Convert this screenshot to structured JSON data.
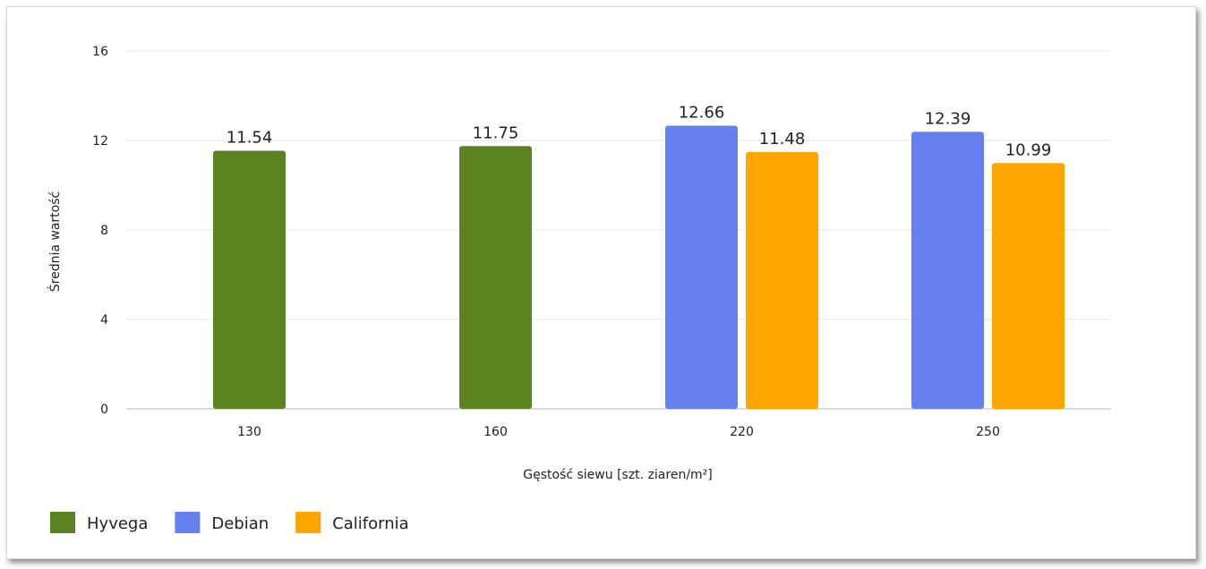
{
  "chart_data": {
    "type": "bar",
    "categories": [
      "130",
      "160",
      "220",
      "250"
    ],
    "series": [
      {
        "name": "Hyvega",
        "color": "#5b8321",
        "values": [
          11.54,
          11.75,
          null,
          null
        ]
      },
      {
        "name": "Debian",
        "color": "#6680f0",
        "values": [
          null,
          null,
          12.66,
          12.39
        ]
      },
      {
        "name": "California",
        "color": "#ffa500",
        "values": [
          null,
          null,
          11.48,
          10.99
        ]
      }
    ],
    "xlabel": "Gęstość siewu [szt. ziaren/m²]",
    "ylabel": "Średnia wartość",
    "ylim": [
      0,
      16
    ],
    "yticks": [
      0,
      4,
      8,
      12,
      16
    ],
    "grid": true,
    "legend_position": "bottom-left"
  }
}
